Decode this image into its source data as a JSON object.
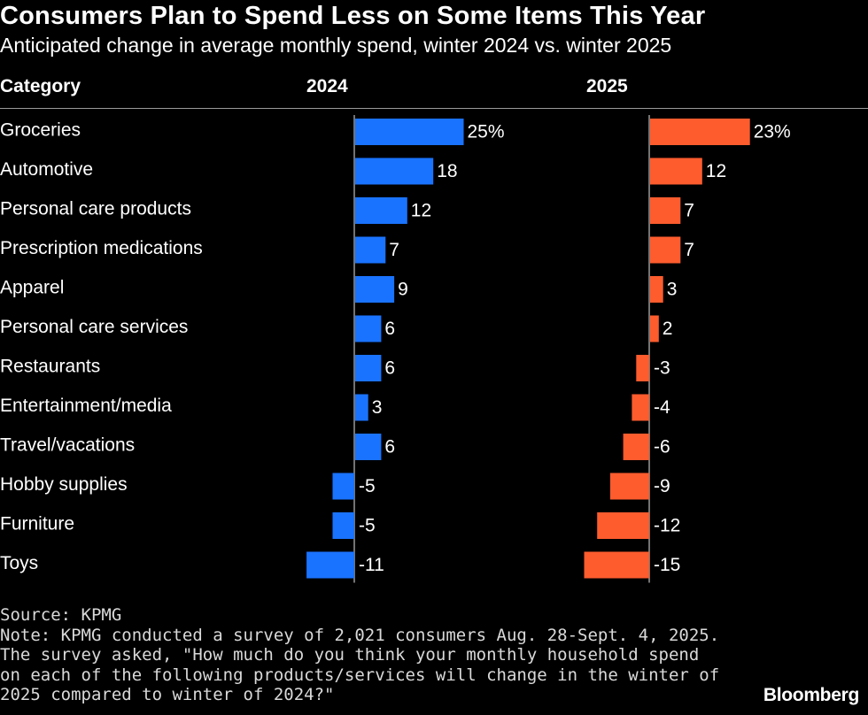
{
  "title": "Consumers Plan to Spend Less on Some Items This Year",
  "subtitle": "Anticipated change in average monthly spend, winter 2024 vs. winter 2025",
  "headers": {
    "category": "Category",
    "col1": "2024",
    "col2": "2025"
  },
  "chart_data": {
    "type": "bar",
    "orientation": "horizontal",
    "categories": [
      "Groceries",
      "Automotive",
      "Personal care products",
      "Prescription medications",
      "Apparel",
      "Personal care services",
      "Restaurants",
      "Entertainment/media",
      "Travel/vacations",
      "Hobby supplies",
      "Furniture",
      "Toys"
    ],
    "series": [
      {
        "name": "2024",
        "color": "#1a73ff",
        "values": [
          25,
          18,
          12,
          7,
          9,
          6,
          6,
          3,
          6,
          -5,
          -5,
          -11
        ],
        "labels": [
          "25%",
          "18",
          "12",
          "7",
          "9",
          "6",
          "6",
          "3",
          "6",
          "-5",
          "-5",
          "-11"
        ]
      },
      {
        "name": "2025",
        "color": "#ff5c2e",
        "values": [
          23,
          12,
          7,
          7,
          3,
          2,
          -3,
          -4,
          -6,
          -9,
          -12,
          -15
        ],
        "labels": [
          "23%",
          "12",
          "7",
          "7",
          "3",
          "2",
          "-3",
          "-4",
          "-6",
          "-9",
          "-12",
          "-15"
        ]
      }
    ],
    "unit": "%"
  },
  "footer": {
    "source": "Source: KPMG",
    "note_lines": [
      "Note: KPMG conducted a survey of 2,021 consumers Aug. 28-Sept. 4, 2025.",
      "The survey asked, \"How much do you think your monthly household spend",
      "on each of the following products/services will change in the winter of",
      "2025 compared to winter of 2024?\""
    ]
  },
  "brand": "Bloomberg"
}
